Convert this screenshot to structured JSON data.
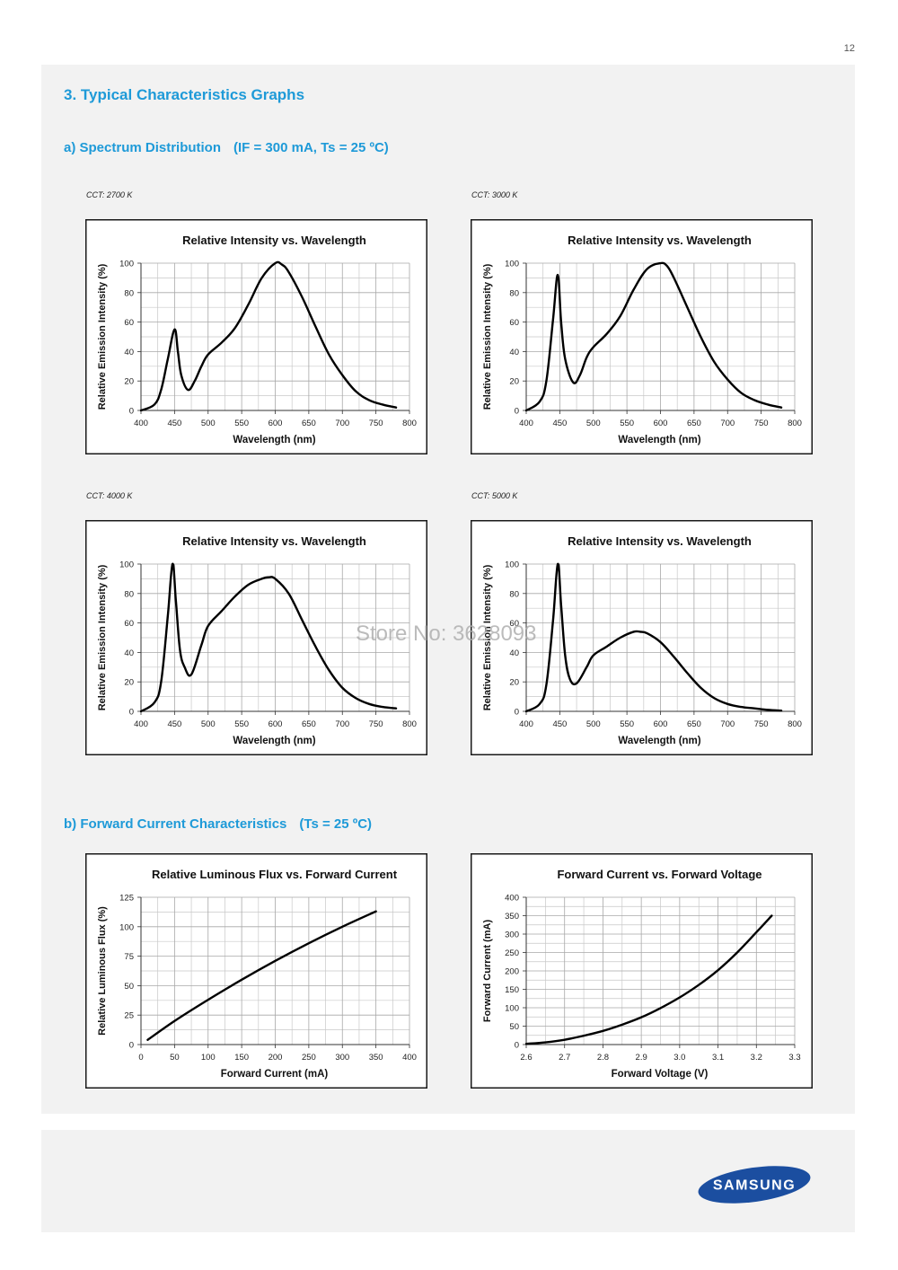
{
  "page_number": "12",
  "section_title": "3.  Typical Characteristics Graphs",
  "subsection_a": {
    "label": "a)  Spectrum Distribution",
    "condition": "(IF = 300 mA, Ts = 25 ºC)"
  },
  "subsection_b": {
    "label": "b)  Forward Current Characteristics",
    "condition": "(Ts = 25 ºC)"
  },
  "cct_labels": [
    "CCT: 2700 K",
    "CCT: 3000 K",
    "CCT: 4000 K",
    "CCT: 5000 K"
  ],
  "watermark": "Store No: 3628093",
  "logo_text": "SAMSUNG",
  "colors": {
    "accent": "#1e9ad8",
    "logo": "#1b4ea0",
    "panel": "#f2f2f2",
    "curve": "#000000"
  },
  "chart_data": [
    {
      "type": "line",
      "title": "Relative Intensity vs. Wavelength",
      "xlabel": "Wavelength (nm)",
      "ylabel": "Relative Emission Intensity (%)",
      "xlim": [
        400,
        800
      ],
      "ylim": [
        0,
        100
      ],
      "xticks": [
        400,
        450,
        500,
        550,
        600,
        650,
        700,
        750,
        800
      ],
      "yticks": [
        0,
        20,
        40,
        60,
        80,
        100
      ],
      "grid": true,
      "x": [
        400,
        420,
        430,
        440,
        450,
        455,
        460,
        470,
        480,
        490,
        500,
        520,
        540,
        560,
        580,
        600,
        610,
        620,
        640,
        660,
        680,
        700,
        720,
        740,
        760,
        780
      ],
      "y": [
        0,
        4,
        14,
        35,
        55,
        40,
        24,
        14,
        20,
        30,
        38,
        46,
        56,
        72,
        90,
        100,
        99,
        94,
        77,
        57,
        38,
        24,
        13,
        7,
        4,
        2
      ]
    },
    {
      "type": "line",
      "title": "Relative Intensity vs. Wavelength",
      "xlabel": "Wavelength (nm)",
      "ylabel": "Relative Emission Intensity (%)",
      "xlim": [
        400,
        800
      ],
      "ylim": [
        0,
        100
      ],
      "xticks": [
        400,
        450,
        500,
        550,
        600,
        650,
        700,
        750,
        800
      ],
      "yticks": [
        0,
        20,
        40,
        60,
        80,
        100
      ],
      "grid": true,
      "x": [
        400,
        420,
        430,
        440,
        447,
        452,
        458,
        470,
        480,
        490,
        500,
        520,
        540,
        560,
        580,
        600,
        610,
        620,
        640,
        660,
        680,
        700,
        720,
        740,
        760,
        780
      ],
      "y": [
        0,
        6,
        20,
        62,
        92,
        60,
        35,
        19,
        24,
        36,
        43,
        52,
        64,
        82,
        96,
        100,
        98,
        90,
        70,
        50,
        33,
        21,
        12,
        7,
        4,
        2
      ]
    },
    {
      "type": "line",
      "title": "Relative Intensity vs. Wavelength",
      "xlabel": "Wavelength (nm)",
      "ylabel": "Relative Emission Intensity (%)",
      "xlim": [
        400,
        800
      ],
      "ylim": [
        0,
        100
      ],
      "xticks": [
        400,
        450,
        500,
        550,
        600,
        650,
        700,
        750,
        800
      ],
      "yticks": [
        0,
        20,
        40,
        60,
        80,
        100
      ],
      "grid": true,
      "x": [
        400,
        420,
        430,
        440,
        447,
        452,
        458,
        465,
        475,
        490,
        500,
        520,
        540,
        560,
        580,
        590,
        600,
        620,
        640,
        660,
        680,
        700,
        720,
        740,
        760,
        780
      ],
      "y": [
        0,
        6,
        20,
        65,
        100,
        75,
        42,
        30,
        25,
        45,
        58,
        68,
        78,
        86,
        90,
        91,
        90,
        80,
        62,
        44,
        28,
        16,
        9,
        5,
        3,
        2
      ]
    },
    {
      "type": "line",
      "title": "Relative Intensity vs. Wavelength",
      "xlabel": "Wavelength (nm)",
      "ylabel": "Relative Emission Intensity (%)",
      "xlim": [
        400,
        800
      ],
      "ylim": [
        0,
        100
      ],
      "xticks": [
        400,
        450,
        500,
        550,
        600,
        650,
        700,
        750,
        800
      ],
      "yticks": [
        0,
        20,
        40,
        60,
        80,
        100
      ],
      "grid": true,
      "x": [
        400,
        420,
        430,
        440,
        447,
        452,
        458,
        465,
        475,
        490,
        500,
        520,
        540,
        560,
        570,
        580,
        600,
        620,
        640,
        660,
        680,
        700,
        720,
        740,
        760,
        780
      ],
      "y": [
        0,
        5,
        18,
        62,
        100,
        72,
        38,
        22,
        19,
        30,
        38,
        44,
        50,
        54,
        54,
        53,
        47,
        37,
        26,
        16,
        9,
        5,
        3,
        2,
        1,
        0.5
      ]
    },
    {
      "type": "line",
      "title": "Relative Luminous Flux vs. Forward Current",
      "xlabel": "Forward Current (mA)",
      "ylabel": "Relative Luminous Flux (%)",
      "xlim": [
        0,
        400
      ],
      "ylim": [
        0,
        125
      ],
      "xticks": [
        0,
        50,
        100,
        150,
        200,
        250,
        300,
        350,
        400
      ],
      "yticks": [
        0,
        25,
        50,
        75,
        100,
        125
      ],
      "grid": true,
      "x": [
        10,
        50,
        100,
        150,
        200,
        250,
        300,
        350
      ],
      "y": [
        4,
        20,
        38,
        55,
        71,
        86,
        100,
        113
      ]
    },
    {
      "type": "line",
      "title": "Forward Current vs. Forward Voltage",
      "xlabel": "Forward Voltage (V)",
      "ylabel": "Forward Current (mA)",
      "xlim": [
        2.6,
        3.3
      ],
      "ylim": [
        0,
        400
      ],
      "xticks": [
        "2.6",
        "2.7",
        "2.8",
        "2.9",
        "3.0",
        "3.1",
        "3.2",
        "3.3"
      ],
      "yticks": [
        0,
        50,
        100,
        150,
        200,
        250,
        300,
        350,
        400
      ],
      "grid": true,
      "x": [
        2.6,
        2.65,
        2.7,
        2.75,
        2.8,
        2.85,
        2.9,
        2.95,
        3.0,
        3.05,
        3.1,
        3.15,
        3.2,
        3.24
      ],
      "y": [
        2,
        6,
        13,
        24,
        37,
        54,
        74,
        99,
        128,
        162,
        202,
        250,
        305,
        350
      ]
    }
  ]
}
